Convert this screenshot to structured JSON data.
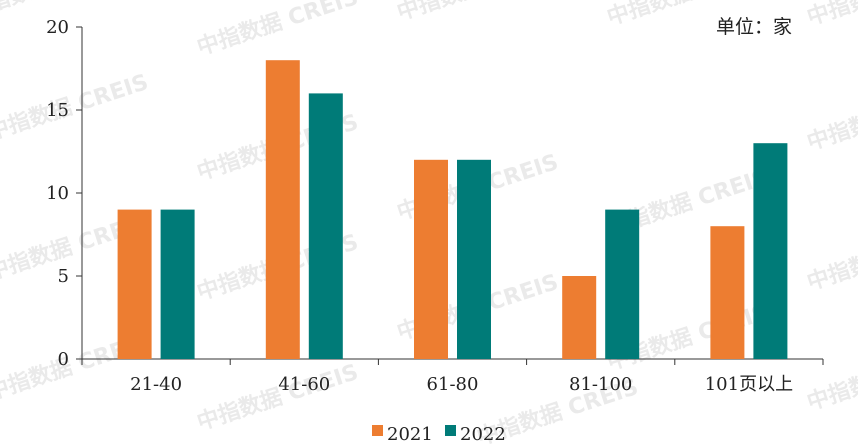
{
  "watermark": "中指数据 CREIS",
  "unit_label": "单位：家",
  "colors": {
    "2021": "#ed7d31",
    "2022": "#007b78"
  },
  "chart_data": {
    "type": "bar",
    "categories": [
      "21-40",
      "41-60",
      "61-80",
      "81-100",
      "101页以上"
    ],
    "series": [
      {
        "name": "2021",
        "values": [
          9,
          18,
          12,
          5,
          8
        ]
      },
      {
        "name": "2022",
        "values": [
          9,
          16,
          12,
          9,
          13
        ]
      }
    ],
    "ylim": [
      0,
      20
    ],
    "yticks": [
      0,
      5,
      10,
      15,
      20
    ],
    "legend": "bottom",
    "grid": false
  }
}
